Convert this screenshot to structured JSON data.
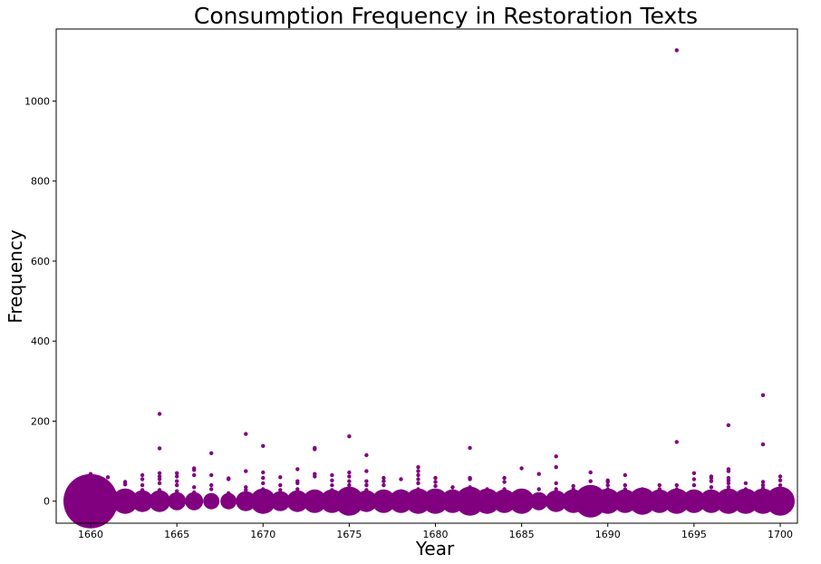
{
  "chart_data": {
    "type": "scatter",
    "title": "Consumption Frequency in Restoration Texts",
    "xlabel": "Year",
    "ylabel": "Frequency",
    "xlim": [
      1658,
      1701
    ],
    "ylim": [
      -55,
      1180
    ],
    "xticks": [
      1660,
      1665,
      1670,
      1675,
      1680,
      1685,
      1690,
      1695,
      1700
    ],
    "yticks": [
      0,
      200,
      400,
      600,
      800,
      1000
    ],
    "grid": false,
    "color": "#800080",
    "zero_bubble_sizes": [
      [
        1660,
        30
      ],
      [
        1661,
        14
      ],
      [
        1662,
        14
      ],
      [
        1663,
        12
      ],
      [
        1664,
        12
      ],
      [
        1665,
        10
      ],
      [
        1666,
        10
      ],
      [
        1667,
        9
      ],
      [
        1668,
        9
      ],
      [
        1669,
        11
      ],
      [
        1670,
        14
      ],
      [
        1671,
        11
      ],
      [
        1672,
        12
      ],
      [
        1673,
        13
      ],
      [
        1674,
        13
      ],
      [
        1675,
        16
      ],
      [
        1676,
        12
      ],
      [
        1677,
        13
      ],
      [
        1678,
        13
      ],
      [
        1679,
        14
      ],
      [
        1680,
        14
      ],
      [
        1681,
        13
      ],
      [
        1682,
        16
      ],
      [
        1683,
        14
      ],
      [
        1684,
        13
      ],
      [
        1685,
        14
      ],
      [
        1686,
        10
      ],
      [
        1687,
        12
      ],
      [
        1688,
        13
      ],
      [
        1689,
        18
      ],
      [
        1690,
        14
      ],
      [
        1691,
        13
      ],
      [
        1692,
        15
      ],
      [
        1693,
        13
      ],
      [
        1694,
        14
      ],
      [
        1695,
        13
      ],
      [
        1696,
        13
      ],
      [
        1697,
        14
      ],
      [
        1698,
        14
      ],
      [
        1699,
        14
      ],
      [
        1700,
        16
      ]
    ],
    "points": [
      [
        1660,
        68
      ],
      [
        1660,
        58
      ],
      [
        1660,
        45
      ],
      [
        1660,
        32
      ],
      [
        1660,
        20
      ],
      [
        1661,
        60
      ],
      [
        1661,
        38
      ],
      [
        1661,
        22
      ],
      [
        1662,
        48
      ],
      [
        1662,
        42
      ],
      [
        1662,
        25
      ],
      [
        1663,
        65
      ],
      [
        1663,
        55
      ],
      [
        1663,
        40
      ],
      [
        1663,
        28
      ],
      [
        1664,
        218
      ],
      [
        1664,
        132
      ],
      [
        1664,
        70
      ],
      [
        1664,
        62
      ],
      [
        1664,
        55
      ],
      [
        1664,
        45
      ],
      [
        1664,
        28
      ],
      [
        1665,
        70
      ],
      [
        1665,
        62
      ],
      [
        1665,
        50
      ],
      [
        1665,
        40
      ],
      [
        1665,
        25
      ],
      [
        1666,
        82
      ],
      [
        1666,
        78
      ],
      [
        1666,
        65
      ],
      [
        1666,
        35
      ],
      [
        1666,
        22
      ],
      [
        1667,
        120
      ],
      [
        1667,
        65
      ],
      [
        1667,
        40
      ],
      [
        1667,
        30
      ],
      [
        1668,
        57
      ],
      [
        1668,
        55
      ],
      [
        1668,
        20
      ],
      [
        1669,
        168
      ],
      [
        1669,
        75
      ],
      [
        1669,
        35
      ],
      [
        1669,
        28
      ],
      [
        1670,
        138
      ],
      [
        1670,
        72
      ],
      [
        1670,
        58
      ],
      [
        1670,
        45
      ],
      [
        1670,
        30
      ],
      [
        1671,
        60
      ],
      [
        1671,
        40
      ],
      [
        1671,
        28
      ],
      [
        1672,
        80
      ],
      [
        1672,
        50
      ],
      [
        1672,
        45
      ],
      [
        1672,
        30
      ],
      [
        1673,
        133
      ],
      [
        1673,
        130
      ],
      [
        1673,
        68
      ],
      [
        1673,
        62
      ],
      [
        1674,
        65
      ],
      [
        1674,
        52
      ],
      [
        1674,
        40
      ],
      [
        1674,
        28
      ],
      [
        1675,
        162
      ],
      [
        1675,
        72
      ],
      [
        1675,
        62
      ],
      [
        1675,
        50
      ],
      [
        1675,
        40
      ],
      [
        1676,
        115
      ],
      [
        1676,
        75
      ],
      [
        1676,
        50
      ],
      [
        1676,
        40
      ],
      [
        1676,
        28
      ],
      [
        1677,
        58
      ],
      [
        1677,
        50
      ],
      [
        1677,
        40
      ],
      [
        1678,
        55
      ],
      [
        1678,
        25
      ],
      [
        1679,
        85
      ],
      [
        1679,
        75
      ],
      [
        1679,
        65
      ],
      [
        1679,
        55
      ],
      [
        1679,
        45
      ],
      [
        1679,
        30
      ],
      [
        1680,
        58
      ],
      [
        1680,
        48
      ],
      [
        1680,
        38
      ],
      [
        1681,
        35
      ],
      [
        1681,
        25
      ],
      [
        1682,
        133
      ],
      [
        1682,
        58
      ],
      [
        1682,
        55
      ],
      [
        1682,
        35
      ],
      [
        1683,
        30
      ],
      [
        1684,
        58
      ],
      [
        1684,
        48
      ],
      [
        1684,
        30
      ],
      [
        1685,
        82
      ],
      [
        1685,
        25
      ],
      [
        1686,
        68
      ],
      [
        1686,
        30
      ],
      [
        1687,
        112
      ],
      [
        1687,
        85
      ],
      [
        1687,
        45
      ],
      [
        1687,
        30
      ],
      [
        1688,
        38
      ],
      [
        1688,
        30
      ],
      [
        1689,
        72
      ],
      [
        1689,
        50
      ],
      [
        1689,
        35
      ],
      [
        1690,
        52
      ],
      [
        1690,
        48
      ],
      [
        1690,
        40
      ],
      [
        1690,
        30
      ],
      [
        1691,
        65
      ],
      [
        1691,
        40
      ],
      [
        1691,
        30
      ],
      [
        1692,
        30
      ],
      [
        1693,
        40
      ],
      [
        1693,
        30
      ],
      [
        1694,
        1127
      ],
      [
        1694,
        148
      ],
      [
        1694,
        40
      ],
      [
        1694,
        30
      ],
      [
        1695,
        70
      ],
      [
        1695,
        55
      ],
      [
        1695,
        40
      ],
      [
        1696,
        62
      ],
      [
        1696,
        58
      ],
      [
        1696,
        50
      ],
      [
        1696,
        35
      ],
      [
        1697,
        190
      ],
      [
        1697,
        80
      ],
      [
        1697,
        75
      ],
      [
        1697,
        58
      ],
      [
        1697,
        52
      ],
      [
        1697,
        45
      ],
      [
        1697,
        35
      ],
      [
        1698,
        45
      ],
      [
        1698,
        30
      ],
      [
        1699,
        265
      ],
      [
        1699,
        142
      ],
      [
        1699,
        48
      ],
      [
        1699,
        40
      ],
      [
        1699,
        32
      ],
      [
        1700,
        62
      ],
      [
        1700,
        52
      ],
      [
        1700,
        40
      ],
      [
        1700,
        30
      ]
    ]
  }
}
